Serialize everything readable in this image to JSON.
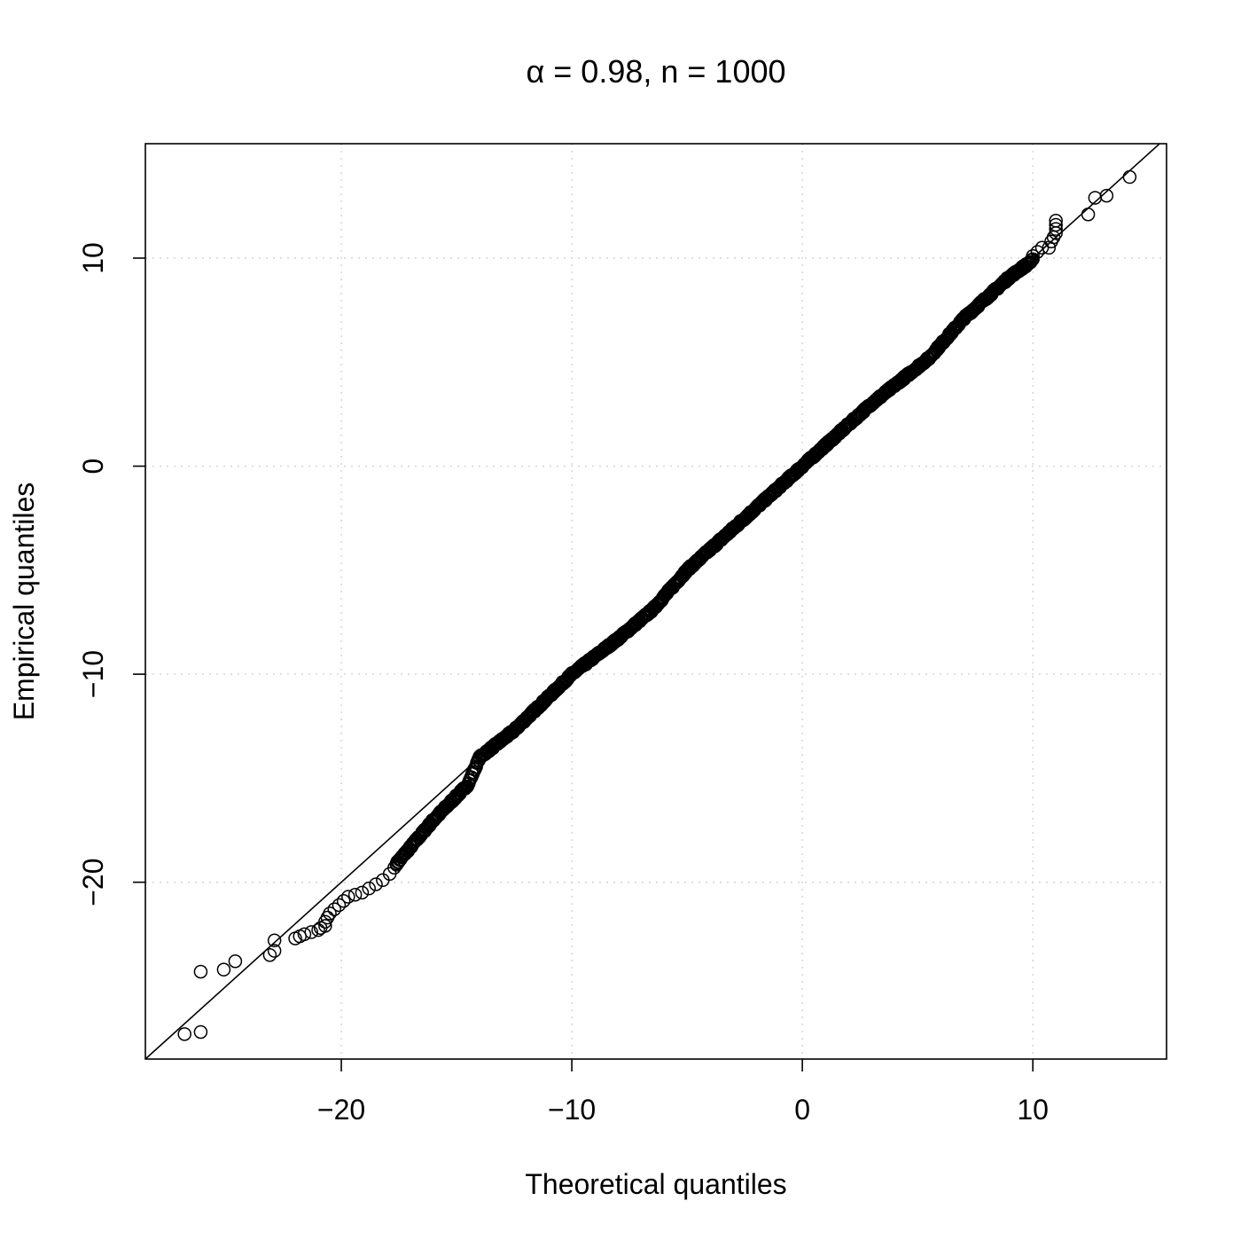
{
  "chart_data": {
    "type": "scatter",
    "title": "α = 0.98, n = 1000",
    "xlabel": "Theoretical quantiles",
    "ylabel": "Empirical quantiles",
    "xlim": [
      -28.5,
      15.8
    ],
    "ylim": [
      -28.5,
      15.5
    ],
    "x_ticks": [
      -20,
      -10,
      0,
      10
    ],
    "x_tick_labels": [
      "−20",
      "−10",
      "0",
      "10"
    ],
    "y_ticks": [
      -20,
      -10,
      0,
      10
    ],
    "y_tick_labels": [
      "−20",
      "−10",
      "0",
      "10"
    ],
    "grid": true,
    "reference_line": {
      "intercept": 0,
      "slope": 1
    },
    "n": 1000,
    "marker": "open-circle",
    "colors": {
      "points": "#000000",
      "grid": "#d3d3d3",
      "axes": "#000000"
    },
    "body_anchors": [
      [
        -17.6,
        -19.1
      ],
      [
        -16.0,
        -17.0
      ],
      [
        -14.5,
        -15.3
      ],
      [
        -14.0,
        -14.0
      ],
      [
        -12.5,
        -12.7
      ],
      [
        -10.0,
        -10.0
      ],
      [
        -8.0,
        -8.3
      ],
      [
        -6.5,
        -6.9
      ],
      [
        -5.0,
        -5.0
      ],
      [
        -2.5,
        -2.5
      ],
      [
        0.0,
        0.0
      ],
      [
        3.0,
        3.0
      ],
      [
        5.5,
        5.2
      ],
      [
        7.0,
        7.1
      ],
      [
        9.0,
        9.1
      ],
      [
        10.0,
        9.9
      ]
    ],
    "body_count": 945,
    "tail_points": [
      [
        -26.8,
        -27.3
      ],
      [
        -26.1,
        -27.2
      ],
      [
        -26.1,
        -24.3
      ],
      [
        -25.1,
        -24.2
      ],
      [
        -24.6,
        -23.8
      ],
      [
        -23.1,
        -23.5
      ],
      [
        -22.9,
        -23.3
      ],
      [
        -22.9,
        -22.8
      ],
      [
        -22.0,
        -22.7
      ],
      [
        -21.8,
        -22.6
      ],
      [
        -21.6,
        -22.5
      ],
      [
        -21.3,
        -22.4
      ],
      [
        -21.0,
        -22.3
      ],
      [
        -20.9,
        -22.2
      ],
      [
        -20.7,
        -22.1
      ],
      [
        -20.7,
        -21.9
      ],
      [
        -20.6,
        -21.7
      ],
      [
        -20.5,
        -21.5
      ],
      [
        -20.3,
        -21.3
      ],
      [
        -20.1,
        -21.1
      ],
      [
        -19.9,
        -20.9
      ],
      [
        -19.7,
        -20.7
      ],
      [
        -19.4,
        -20.6
      ],
      [
        -19.1,
        -20.5
      ],
      [
        -18.8,
        -20.3
      ],
      [
        -18.5,
        -20.1
      ],
      [
        -18.2,
        -19.9
      ],
      [
        -17.9,
        -19.6
      ],
      [
        -17.7,
        -19.3
      ],
      [
        -17.6,
        -19.1
      ],
      [
        9.7,
        9.6
      ],
      [
        9.9,
        9.8
      ],
      [
        10.0,
        10.1
      ],
      [
        10.2,
        10.3
      ],
      [
        10.4,
        10.5
      ],
      [
        10.7,
        10.5
      ],
      [
        10.8,
        10.8
      ],
      [
        10.9,
        11.0
      ],
      [
        11.0,
        11.2
      ],
      [
        11.0,
        11.4
      ],
      [
        11.0,
        11.6
      ],
      [
        11.0,
        11.8
      ],
      [
        12.4,
        12.1
      ],
      [
        12.7,
        12.9
      ],
      [
        13.2,
        13.0
      ],
      [
        14.2,
        13.9
      ]
    ]
  }
}
